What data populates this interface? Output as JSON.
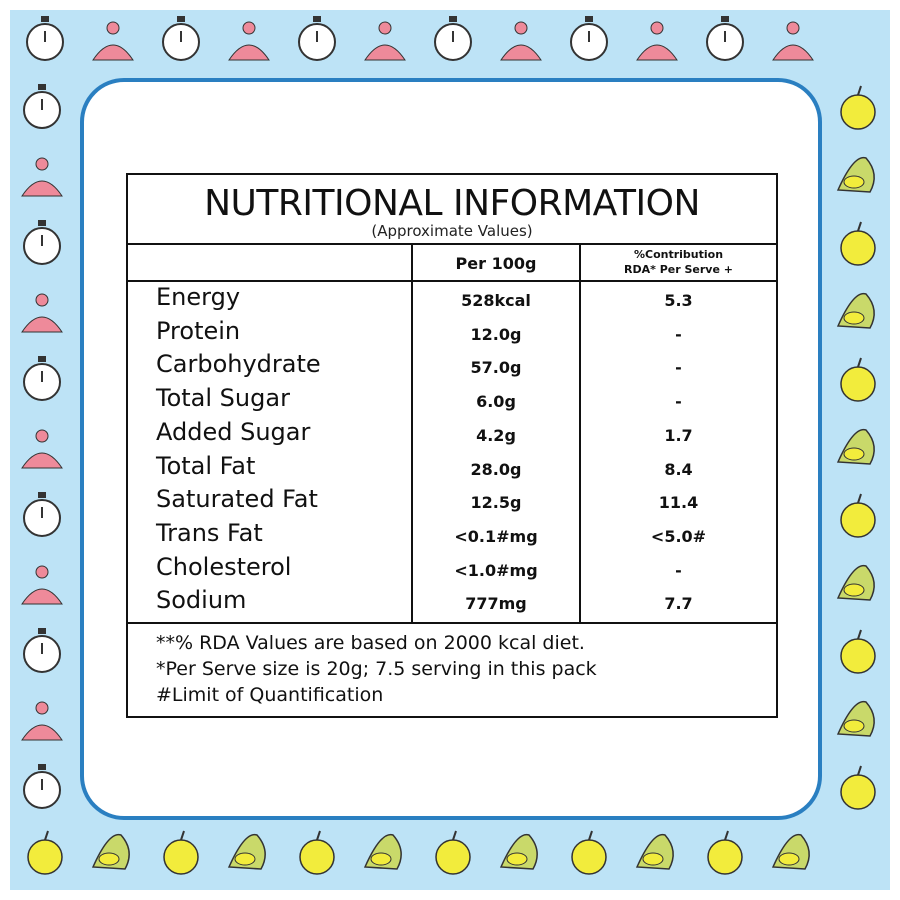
{
  "title": "NUTRITIONAL INFORMATION",
  "subtitle": "(Approximate Values)",
  "table": {
    "header": {
      "per_100g": "Per 100g",
      "contribution": [
        "%Contribution",
        "RDA* Per Serve +"
      ]
    },
    "rows": [
      [
        "Energy",
        "528kcal",
        "5.3"
      ],
      [
        "Protein",
        "12.0g",
        "-"
      ],
      [
        "Carbohydrate",
        "57.0g",
        "-"
      ],
      [
        "Total Sugar",
        "6.0g",
        "-"
      ],
      [
        "Added Sugar",
        "4.2g",
        "1.7"
      ],
      [
        "Total Fat",
        "28.0g",
        "8.4"
      ],
      [
        "Saturated Fat",
        "12.5g",
        "11.4"
      ],
      [
        "Trans Fat",
        "<0.1#mg",
        "<5.0#"
      ],
      [
        "Cholesterol",
        "<1.0#mg",
        "-"
      ],
      [
        "Sodium",
        "777mg",
        "7.7"
      ]
    ]
  },
  "footnotes": [
    "**% RDA Values are based on 2000 kcal diet.",
    "*Per Serve size is 20g; 7.5 serving in this pack",
    "#Limit of Quantification"
  ]
}
